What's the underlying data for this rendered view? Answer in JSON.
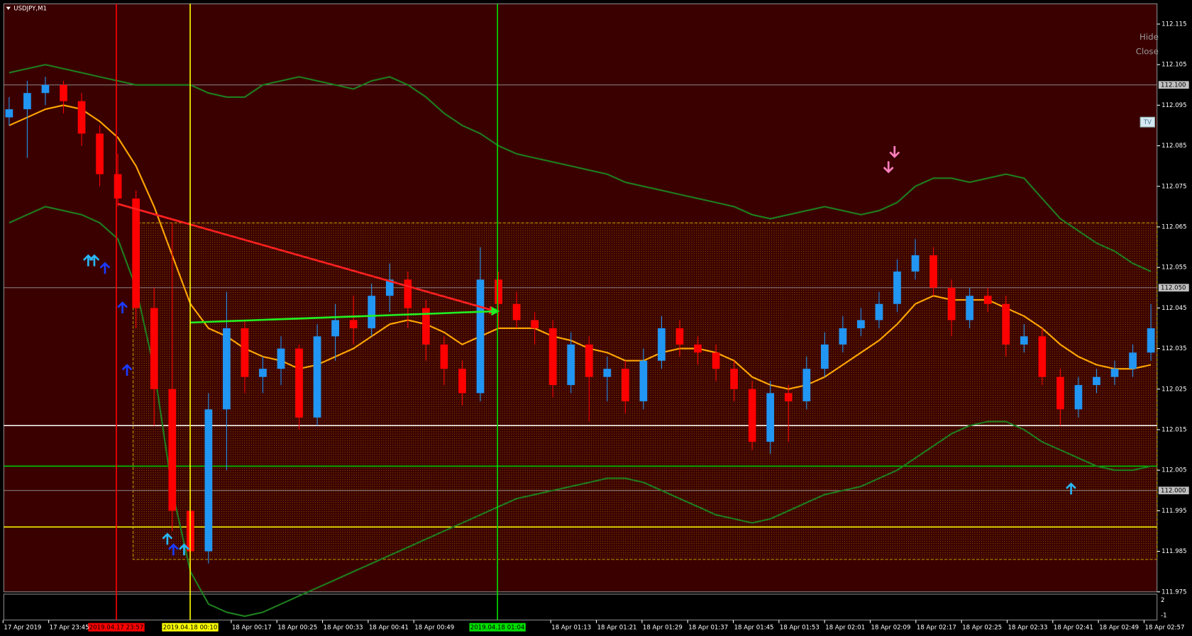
{
  "chart_data": {
    "type": "candlestick",
    "title": "USDJPY,M1",
    "ylim": [
      111.975,
      112.12
    ],
    "yticks": [
      112.115,
      112.105,
      112.095,
      112.085,
      112.075,
      112.065,
      112.055,
      112.045,
      112.035,
      112.025,
      112.015,
      112.005,
      111.995,
      111.985,
      111.975
    ],
    "up_color": "#2196f3",
    "down_color": "#ff0000",
    "ohlc": [
      [
        112.092,
        112.097,
        112.09,
        112.094
      ],
      [
        112.094,
        112.101,
        112.082,
        112.098
      ],
      [
        112.098,
        112.102,
        112.095,
        112.1
      ],
      [
        112.1,
        112.101,
        112.093,
        112.096
      ],
      [
        112.096,
        112.098,
        112.085,
        112.088
      ],
      [
        112.088,
        112.09,
        112.075,
        112.078
      ],
      [
        112.078,
        112.083,
        112.07,
        112.072
      ],
      [
        112.072,
        112.074,
        112.04,
        112.045
      ],
      [
        112.045,
        112.05,
        112.016,
        112.025
      ],
      [
        112.025,
        112.066,
        111.99,
        111.995
      ],
      [
        111.995,
        112.0,
        111.98,
        111.985
      ],
      [
        111.985,
        112.024,
        111.982,
        112.02
      ],
      [
        112.02,
        112.049,
        112.005,
        112.04
      ],
      [
        112.04,
        112.042,
        112.024,
        112.028
      ],
      [
        112.028,
        112.033,
        112.024,
        112.03
      ],
      [
        112.03,
        112.038,
        112.026,
        112.035
      ],
      [
        112.035,
        112.036,
        112.015,
        112.018
      ],
      [
        112.018,
        112.041,
        112.016,
        112.038
      ],
      [
        112.038,
        112.046,
        112.032,
        112.042
      ],
      [
        112.042,
        112.048,
        112.036,
        112.04
      ],
      [
        112.04,
        112.051,
        112.038,
        112.048
      ],
      [
        112.048,
        112.056,
        112.044,
        112.052
      ],
      [
        112.052,
        112.054,
        112.04,
        112.045
      ],
      [
        112.045,
        112.047,
        112.032,
        112.036
      ],
      [
        112.036,
        112.038,
        112.026,
        112.03
      ],
      [
        112.03,
        112.032,
        112.021,
        112.024
      ],
      [
        112.024,
        112.06,
        112.022,
        112.052
      ],
      [
        112.052,
        112.054,
        112.04,
        112.046
      ],
      [
        112.046,
        112.049,
        112.04,
        112.042
      ],
      [
        112.042,
        112.044,
        112.036,
        112.04
      ],
      [
        112.04,
        112.042,
        112.023,
        112.026
      ],
      [
        112.026,
        112.039,
        112.024,
        112.036
      ],
      [
        112.036,
        112.038,
        112.017,
        112.028
      ],
      [
        112.028,
        112.033,
        112.022,
        112.03
      ],
      [
        112.03,
        112.032,
        112.019,
        112.022
      ],
      [
        112.022,
        112.035,
        112.02,
        112.032
      ],
      [
        112.032,
        112.043,
        112.03,
        112.04
      ],
      [
        112.04,
        112.042,
        112.033,
        112.036
      ],
      [
        112.036,
        112.038,
        112.031,
        112.034
      ],
      [
        112.034,
        112.036,
        112.027,
        112.03
      ],
      [
        112.03,
        112.032,
        112.022,
        112.025
      ],
      [
        112.025,
        112.027,
        112.01,
        112.012
      ],
      [
        112.012,
        112.027,
        112.009,
        112.024
      ],
      [
        112.024,
        112.026,
        112.012,
        112.022
      ],
      [
        112.022,
        112.033,
        112.02,
        112.03
      ],
      [
        112.03,
        112.039,
        112.028,
        112.036
      ],
      [
        112.036,
        112.043,
        112.034,
        112.04
      ],
      [
        112.04,
        112.045,
        112.038,
        112.042
      ],
      [
        112.042,
        112.049,
        112.04,
        112.046
      ],
      [
        112.046,
        112.057,
        112.044,
        112.054
      ],
      [
        112.054,
        112.062,
        112.052,
        112.058
      ],
      [
        112.058,
        112.06,
        112.048,
        112.05
      ],
      [
        112.05,
        112.052,
        112.038,
        112.042
      ],
      [
        112.042,
        112.05,
        112.04,
        112.048
      ],
      [
        112.048,
        112.05,
        112.044,
        112.046
      ],
      [
        112.046,
        112.048,
        112.033,
        112.036
      ],
      [
        112.036,
        112.041,
        112.034,
        112.038
      ],
      [
        112.038,
        112.04,
        112.026,
        112.028
      ],
      [
        112.028,
        112.03,
        112.016,
        112.02
      ],
      [
        112.02,
        112.028,
        112.018,
        112.026
      ],
      [
        112.026,
        112.03,
        112.024,
        112.028
      ],
      [
        112.028,
        112.032,
        112.026,
        112.03
      ],
      [
        112.03,
        112.036,
        112.028,
        112.034
      ],
      [
        112.034,
        112.046,
        112.032,
        112.04
      ]
    ],
    "indicators": [
      {
        "color": "#ffa500",
        "values": [
          112.09,
          112.092,
          112.094,
          112.095,
          112.094,
          112.091,
          112.087,
          112.08,
          112.07,
          112.058,
          112.046,
          112.04,
          112.038,
          112.035,
          112.033,
          112.032,
          112.03,
          112.031,
          112.033,
          112.035,
          112.038,
          112.041,
          112.042,
          112.041,
          112.039,
          112.036,
          112.038,
          112.04,
          112.04,
          112.04,
          112.038,
          112.037,
          112.035,
          112.034,
          112.032,
          112.032,
          112.034,
          112.035,
          112.035,
          112.034,
          112.032,
          112.028,
          112.026,
          112.025,
          112.026,
          112.028,
          112.031,
          112.034,
          112.037,
          112.041,
          112.046,
          112.048,
          112.047,
          112.047,
          112.047,
          112.045,
          112.043,
          112.04,
          112.036,
          112.033,
          112.031,
          112.03,
          112.03,
          112.031
        ]
      },
      {
        "color": "#1e7d1e",
        "values": [
          112.103,
          112.104,
          112.105,
          112.104,
          112.103,
          112.102,
          112.101,
          112.1,
          112.1,
          112.1,
          112.1,
          112.098,
          112.097,
          112.097,
          112.1,
          112.101,
          112.102,
          112.101,
          112.1,
          112.099,
          112.101,
          112.102,
          112.1,
          112.097,
          112.093,
          112.09,
          112.088,
          112.085,
          112.083,
          112.082,
          112.081,
          112.08,
          112.079,
          112.078,
          112.076,
          112.075,
          112.074,
          112.073,
          112.072,
          112.071,
          112.07,
          112.068,
          112.067,
          112.068,
          112.069,
          112.07,
          112.069,
          112.068,
          112.069,
          112.071,
          112.075,
          112.077,
          112.077,
          112.076,
          112.077,
          112.078,
          112.077,
          112.072,
          112.067,
          112.064,
          112.061,
          112.059,
          112.056,
          112.054
        ]
      },
      {
        "color": "#1e7d1e",
        "values": [
          112.066,
          112.068,
          112.07,
          112.069,
          112.068,
          112.066,
          112.062,
          112.05,
          112.03,
          112.0,
          111.98,
          111.972,
          111.97,
          111.969,
          111.97,
          111.972,
          111.974,
          111.976,
          111.978,
          111.98,
          111.982,
          111.984,
          111.986,
          111.988,
          111.99,
          111.992,
          111.994,
          111.996,
          111.998,
          111.999,
          112.0,
          112.001,
          112.002,
          112.003,
          112.003,
          112.002,
          112.0,
          111.998,
          111.996,
          111.994,
          111.993,
          111.992,
          111.993,
          111.995,
          111.997,
          111.999,
          112.0,
          112.001,
          112.003,
          112.005,
          112.008,
          112.011,
          112.014,
          112.016,
          112.017,
          112.017,
          112.015,
          112.012,
          112.01,
          112.008,
          112.006,
          112.005,
          112.005,
          112.006
        ]
      }
    ],
    "zone": {
      "range": [
        111.983,
        112.066
      ],
      "color": "#c8a000"
    },
    "levels": [
      {
        "value": 111.991,
        "color": "#ffff00"
      },
      {
        "value": 112.006,
        "color": "#00c800"
      },
      {
        "value": 112.016,
        "color": "#ffffff"
      }
    ],
    "price_lines": [
      {
        "value": 112.1,
        "label": "112.100"
      },
      {
        "value": 112.05,
        "label": "112.050"
      },
      {
        "value": 112.0,
        "label": "112.000"
      }
    ],
    "markers": [
      {
        "label": "2019.04.17 23:57",
        "color": "#ff0000"
      },
      {
        "label": "2019.04.18 00:10",
        "color": "#ffff00"
      },
      {
        "label": "2019.04.18 01:04",
        "color": "#00e000"
      }
    ],
    "xtick_labels": [
      "17 Apr 2019",
      "17 Apr 23:45",
      null,
      null,
      null,
      "18 Apr 00:17",
      "18 Apr 00:25",
      "18 Apr 00:33",
      "18 Apr 00:41",
      "18 Apr 00:49",
      null,
      null,
      "18 Apr 01:13",
      "18 Apr 01:21",
      "18 Apr 01:29",
      "18 Apr 01:37",
      "18 Apr 01:45",
      "18 Apr 01:53",
      "18 Apr 02:01",
      "18 Apr 02:09",
      "18 Apr 02:17",
      "18 Apr 02:25",
      "18 Apr 02:33",
      "18 Apr 02:41",
      "18 Apr 02:49",
      "18 Apr 02:57"
    ],
    "sub_ylabels": [
      "2",
      "-1"
    ],
    "buttons": [
      "Hide",
      "Close"
    ],
    "badge": "TV"
  }
}
